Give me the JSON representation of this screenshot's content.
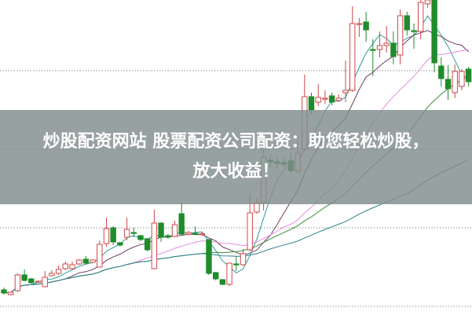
{
  "banner": {
    "line1": "炒股配资网站 股票配资公司配资：助您轻松炒股，",
    "line2": "放大收益！"
  },
  "colors": {
    "up": "#d0474a",
    "down": "#1e8c2a",
    "grid": "#a9a9a9",
    "ma": [
      "#2f9a9a",
      "#6a3d5e",
      "#e58de0",
      "#3d8a3d",
      "#2b8088"
    ]
  },
  "chart_data": {
    "type": "candlestick",
    "title": "",
    "grid": true,
    "moving_average_periods": [
      5,
      10,
      20,
      30,
      60
    ],
    "ohlc": [
      [
        31,
        34,
        25,
        27
      ],
      [
        25,
        29,
        24,
        28
      ],
      [
        30,
        52,
        28,
        50
      ],
      [
        50,
        57,
        42,
        43
      ],
      [
        45,
        46,
        39,
        40
      ],
      [
        42,
        43,
        41,
        42
      ],
      [
        35,
        55,
        35,
        47
      ],
      [
        49,
        56,
        48,
        52
      ],
      [
        52,
        62,
        50,
        57
      ],
      [
        58,
        67,
        56,
        64
      ],
      [
        58,
        67,
        57,
        63
      ],
      [
        64,
        70,
        63,
        69
      ],
      [
        70,
        74,
        64,
        65
      ],
      [
        66,
        70,
        65,
        69
      ],
      [
        60,
        94,
        60,
        89
      ],
      [
        90,
        123,
        86,
        109
      ],
      [
        110,
        112,
        88,
        92
      ],
      [
        91,
        92,
        86,
        88
      ],
      [
        98,
        123,
        94,
        108
      ],
      [
        104,
        110,
        98,
        103
      ],
      [
        100,
        101,
        93,
        95
      ],
      [
        96,
        97,
        80,
        82
      ],
      [
        58,
        133,
        57,
        116
      ],
      [
        116,
        117,
        92,
        98
      ],
      [
        100,
        102,
        96,
        98
      ],
      [
        99,
        119,
        98,
        114
      ],
      [
        128,
        142,
        100,
        102
      ],
      [
        102,
        106,
        100,
        104
      ],
      [
        103,
        112,
        101,
        102
      ],
      [
        102,
        104,
        100,
        102.5
      ],
      [
        95,
        96,
        50,
        52
      ],
      [
        53,
        54,
        43,
        45
      ],
      [
        44,
        45,
        37,
        38
      ],
      [
        38,
        65,
        36,
        65
      ],
      [
        64,
        74,
        55,
        63
      ],
      [
        63,
        83,
        62,
        77
      ],
      [
        82,
        153,
        80,
        129
      ],
      [
        130,
        148,
        128,
        142
      ],
      [
        142,
        220,
        132,
        200
      ],
      [
        196,
        203,
        187,
        194
      ],
      [
        194,
        200,
        186,
        192
      ],
      [
        193,
        198,
        187,
        191
      ],
      [
        195,
        205,
        180,
        183
      ],
      [
        182,
        220,
        180,
        205
      ],
      [
        210,
        305,
        208,
        277
      ],
      [
        277,
        282,
        255,
        260
      ],
      [
        270,
        293,
        265,
        276
      ],
      [
        274,
        285,
        268,
        275
      ],
      [
        278,
        282,
        266,
        270
      ],
      [
        272,
        280,
        270,
        275
      ],
      [
        282,
        323,
        270,
        285
      ],
      [
        285,
        392,
        283,
        370
      ],
      [
        369,
        377,
        353,
        370
      ],
      [
        372,
        385,
        347,
        362
      ],
      [
        337,
        350,
        303,
        336
      ],
      [
        337,
        360,
        327,
        342
      ],
      [
        342,
        367,
        333,
        345
      ],
      [
        345,
        360,
        318,
        328
      ],
      [
        330,
        388,
        318,
        380
      ],
      [
        380,
        385,
        355,
        362
      ],
      [
        361,
        370,
        338,
        360
      ],
      [
        360,
        400,
        350,
        397
      ],
      [
        395,
        400,
        390,
        400
      ],
      [
        400,
        400,
        308,
        320
      ],
      [
        316,
        327,
        290,
        300
      ],
      [
        299,
        317,
        273,
        287
      ],
      [
        282,
        318,
        275,
        309
      ],
      [
        290,
        312,
        285,
        309
      ],
      [
        312,
        315,
        290,
        296
      ]
    ]
  }
}
